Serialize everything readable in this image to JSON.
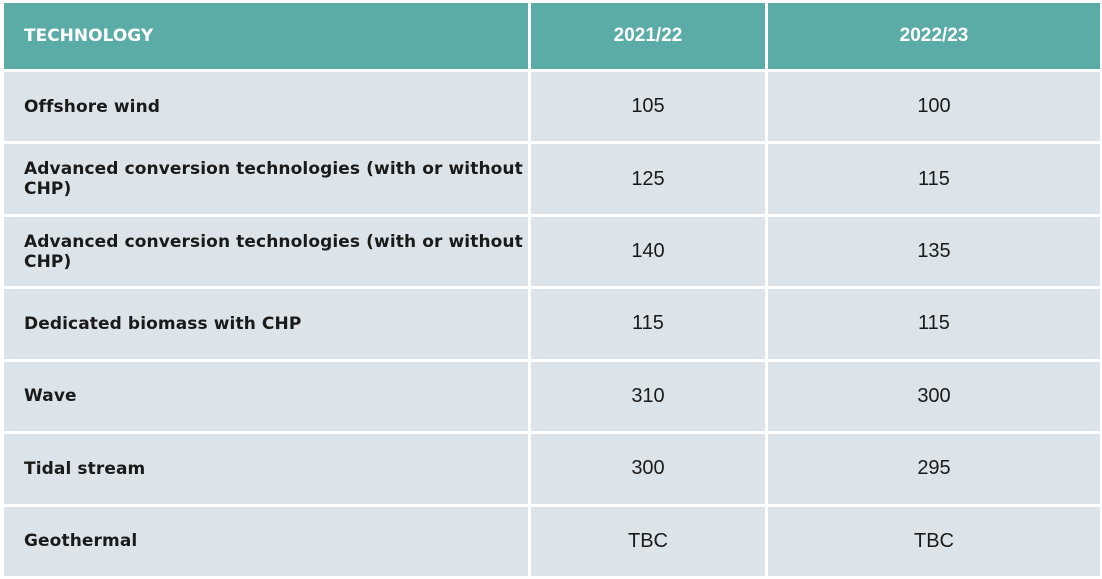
{
  "table": {
    "headers": [
      "TECHNOLOGY",
      "2021/22",
      "2022/23"
    ],
    "rows": [
      {
        "technology": "Offshore wind",
        "y2021_22": "105",
        "y2022_23": "100"
      },
      {
        "technology": "Advanced conversion technologies (with or without CHP)",
        "y2021_22": "125",
        "y2022_23": "115"
      },
      {
        "technology": "Advanced conversion technologies (with or without CHP)",
        "y2021_22": "140",
        "y2022_23": "135"
      },
      {
        "technology": "Dedicated biomass with CHP",
        "y2021_22": "115",
        "y2022_23": "115"
      },
      {
        "technology": "Wave",
        "y2021_22": "310",
        "y2022_23": "300"
      },
      {
        "technology": "Tidal stream",
        "y2021_22": "300",
        "y2022_23": "295"
      },
      {
        "technology": "Geothermal",
        "y2021_22": "TBC",
        "y2022_23": "TBC"
      }
    ]
  },
  "colors": {
    "header_bg": "#5baca7",
    "header_text": "#ffffff",
    "row_bg": "#dce4e9",
    "row_text": "#1a1a1a"
  }
}
